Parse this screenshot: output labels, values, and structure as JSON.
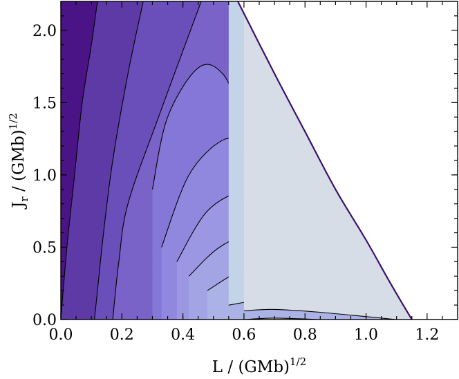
{
  "chart_data": {
    "type": "contour",
    "xlabel": {
      "base": "L / (GMb)",
      "sup": "1/2"
    },
    "ylabel": {
      "base": "J",
      "sub": "r",
      "rest": " / (GMb)",
      "sup": "1/2"
    },
    "xlim": [
      0.0,
      1.3
    ],
    "ylim": [
      0.0,
      2.2
    ],
    "x_ticks": [
      0.0,
      0.2,
      0.4,
      0.6,
      0.8,
      1.0,
      1.2
    ],
    "x_tick_labels": [
      "0.0",
      "0.2",
      "0.4",
      "0.6",
      "0.8",
      "1.0",
      "1.2"
    ],
    "y_ticks": [
      0.0,
      0.5,
      1.0,
      1.5,
      2.0
    ],
    "y_tick_labels": [
      "0.0",
      "0.5",
      "1.0",
      "1.5",
      "2.0"
    ],
    "boundary": [
      [
        0.58,
        2.2
      ],
      [
        0.7,
        1.7
      ],
      [
        0.8,
        1.3
      ],
      [
        0.9,
        0.9
      ],
      [
        1.0,
        0.55
      ],
      [
        1.08,
        0.25
      ],
      [
        1.15,
        0.0
      ]
    ],
    "bands": [
      {
        "color": "#4a1486",
        "contour": [
          [
            0.0,
            2.2
          ],
          [
            0.0,
            0.0
          ]
        ]
      },
      {
        "color": "#5e3aa6",
        "contour": [
          [
            0.12,
            2.2
          ],
          [
            0.1,
            1.9
          ],
          [
            0.07,
            1.5
          ],
          [
            0.045,
            1.0
          ],
          [
            0.02,
            0.5
          ],
          [
            0.0,
            0.0
          ]
        ]
      },
      {
        "color": "#6a4fba",
        "contour": [
          [
            0.27,
            2.2
          ],
          [
            0.22,
            1.7
          ],
          [
            0.17,
            1.1
          ],
          [
            0.14,
            0.6
          ],
          [
            0.12,
            0.2
          ],
          [
            0.11,
            0.0
          ]
        ]
      },
      {
        "color": "#7962c8",
        "contour": [
          [
            0.46,
            2.2
          ],
          [
            0.32,
            1.4
          ],
          [
            0.22,
            0.8
          ],
          [
            0.19,
            0.4
          ],
          [
            0.17,
            0.0
          ]
        ]
      },
      {
        "color": "#8577d8",
        "contour": [
          [
            0.3,
            0.9
          ],
          [
            0.35,
            1.4
          ],
          [
            0.45,
            1.74
          ],
          [
            0.53,
            1.7
          ],
          [
            0.6,
            1.4
          ],
          [
            0.7,
            1.05
          ]
        ]
      },
      {
        "color": "#9087de",
        "contour": [
          [
            0.33,
            0.5
          ],
          [
            0.42,
            1.0
          ],
          [
            0.53,
            1.24
          ],
          [
            0.6,
            1.2
          ],
          [
            0.7,
            1.0
          ],
          [
            0.8,
            0.8
          ]
        ]
      },
      {
        "color": "#9b97e2",
        "contour": [
          [
            0.38,
            0.4
          ],
          [
            0.48,
            0.75
          ],
          [
            0.6,
            0.89
          ],
          [
            0.7,
            0.85
          ],
          [
            0.84,
            0.68
          ]
        ]
      },
      {
        "color": "#a3a4e4",
        "contour": [
          [
            0.42,
            0.3
          ],
          [
            0.52,
            0.5
          ],
          [
            0.65,
            0.62
          ],
          [
            0.75,
            0.6
          ],
          [
            0.9,
            0.5
          ]
        ]
      },
      {
        "color": "#abb3e6",
        "contour": [
          [
            0.48,
            0.2
          ],
          [
            0.58,
            0.33
          ],
          [
            0.68,
            0.4
          ],
          [
            0.8,
            0.38
          ],
          [
            0.95,
            0.3
          ]
        ]
      },
      {
        "color": "#b4c1e8",
        "contour": [
          [
            0.6,
            0.2
          ],
          [
            0.7,
            0.25
          ],
          [
            0.8,
            0.24
          ],
          [
            1.0,
            0.15
          ]
        ]
      },
      {
        "color": "#c3d3e8",
        "contour": [
          [
            0.55,
            0.1
          ],
          [
            0.68,
            0.14
          ],
          [
            0.8,
            0.12
          ],
          [
            1.05,
            0.05
          ]
        ]
      },
      {
        "color": "#d6dde6",
        "contour": [
          [
            0.6,
            0.06
          ],
          [
            0.7,
            0.07
          ],
          [
            0.85,
            0.05
          ],
          [
            1.1,
            0.0
          ]
        ]
      },
      {
        "color": "#ebe3d6",
        "contour": [
          [
            0.6,
            0.0
          ],
          [
            0.7,
            0.01
          ],
          [
            0.85,
            0.0
          ]
        ]
      }
    ],
    "grid": false,
    "legend": "none"
  }
}
